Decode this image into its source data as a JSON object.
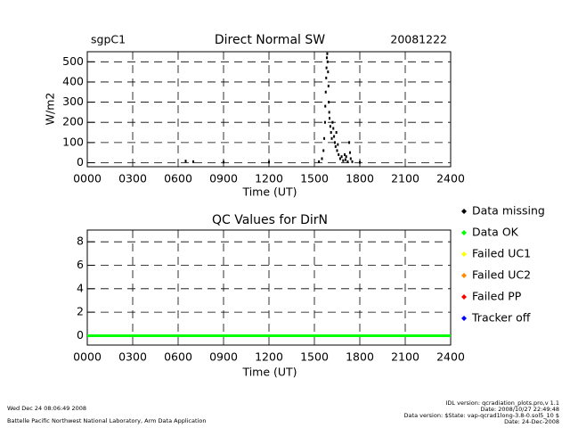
{
  "chart_data": [
    {
      "type": "scatter",
      "title": "Direct Normal SW",
      "site": "sgpC1",
      "date": "20081222",
      "xlabel": "Time (UT)",
      "ylabel": "W/m2",
      "color": "#000000",
      "xlim": [
        0,
        24
      ],
      "xticks": [
        {
          "value": 0,
          "label": "0000"
        },
        {
          "value": 3,
          "label": "0300"
        },
        {
          "value": 6,
          "label": "0600"
        },
        {
          "value": 9,
          "label": "0900"
        },
        {
          "value": 12,
          "label": "1200"
        },
        {
          "value": 15,
          "label": "1500"
        },
        {
          "value": 18,
          "label": "1800"
        },
        {
          "value": 21,
          "label": "2100"
        },
        {
          "value": 24,
          "label": "2400"
        }
      ],
      "ylim": [
        -20,
        550
      ],
      "yticks": [
        0,
        100,
        200,
        300,
        400,
        500
      ],
      "grid": true,
      "x": [
        6.5,
        7.0,
        9.0,
        12.0,
        15.3,
        15.5,
        15.6,
        15.65,
        15.7,
        15.72,
        15.75,
        15.78,
        15.8,
        15.82,
        15.85,
        15.87,
        15.9,
        15.93,
        15.95,
        15.98,
        16.0,
        16.05,
        16.1,
        16.15,
        16.2,
        16.25,
        16.3,
        16.35,
        16.4,
        16.45,
        16.5,
        16.55,
        16.6,
        16.7,
        16.8,
        16.9,
        17.0,
        17.05,
        17.1,
        17.2,
        17.3,
        17.35,
        17.4,
        17.5,
        18.0
      ],
      "values": [
        8,
        5,
        3,
        3,
        5,
        20,
        60,
        120,
        200,
        280,
        350,
        420,
        470,
        520,
        540,
        500,
        450,
        380,
        300,
        250,
        220,
        180,
        150,
        120,
        200,
        170,
        130,
        100,
        80,
        150,
        60,
        90,
        40,
        20,
        30,
        10,
        40,
        15,
        30,
        5,
        100,
        50,
        20,
        5,
        2
      ]
    },
    {
      "type": "line",
      "title": "QC Values for DirN",
      "xlabel": "Time (UT)",
      "xlim": [
        0,
        24
      ],
      "xticks": [
        {
          "value": 0,
          "label": "0000"
        },
        {
          "value": 3,
          "label": "0300"
        },
        {
          "value": 6,
          "label": "0600"
        },
        {
          "value": 9,
          "label": "0900"
        },
        {
          "value": 12,
          "label": "1200"
        },
        {
          "value": 15,
          "label": "1500"
        },
        {
          "value": 18,
          "label": "1800"
        },
        {
          "value": 21,
          "label": "2100"
        },
        {
          "value": 24,
          "label": "2400"
        }
      ],
      "ylim": [
        -0.8,
        9
      ],
      "yticks": [
        0,
        2,
        4,
        6,
        8
      ],
      "grid": true,
      "x": [
        0,
        24
      ],
      "series": [
        {
          "name": "Data missing",
          "color": "#000000",
          "values": [
            null,
            null
          ]
        },
        {
          "name": "Data OK",
          "color": "#00ff00",
          "values": [
            0,
            0
          ]
        },
        {
          "name": "Failed UC1",
          "color": "#ffff00",
          "values": [
            null,
            null
          ]
        },
        {
          "name": "Failed UC2",
          "color": "#ff8c00",
          "values": [
            null,
            null
          ]
        },
        {
          "name": "Failed PP",
          "color": "#ff0000",
          "values": [
            null,
            null
          ]
        },
        {
          "name": "Tracker off",
          "color": "#0000ff",
          "values": [
            null,
            null
          ]
        }
      ]
    }
  ],
  "footer": {
    "timestamp": "Wed Dec 24 08:06:49 2008",
    "organization": "Battelle Pacific Northwest National Laboratory, Arm Data Application",
    "idl_version": "IDL version: qcradiation_plots.pro,v 1.1",
    "idl_date": "Date: 2008/10/27 22:49:48",
    "data_version": "Data version: $State: vap-qcrad1long-3.8-0.sol5_10 $",
    "data_date": "Date: 24-Dec-2008"
  }
}
